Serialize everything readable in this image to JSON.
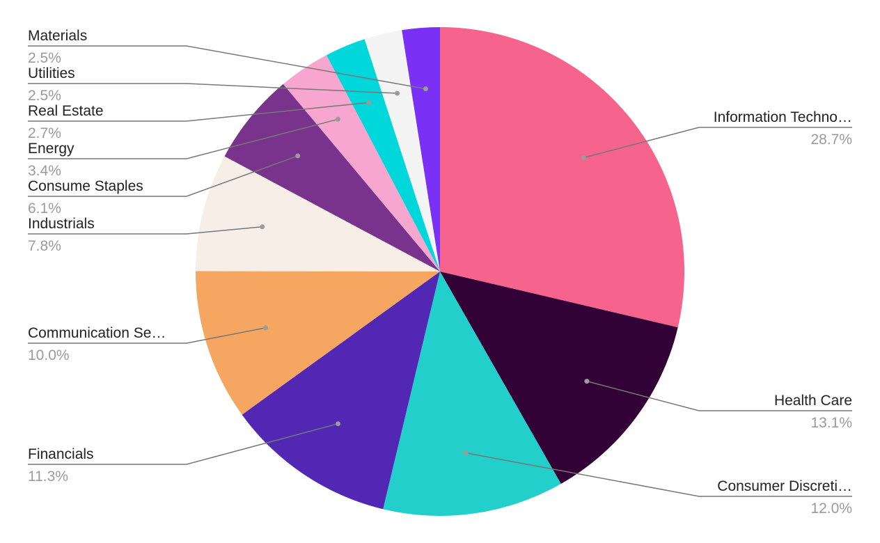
{
  "chart_data": {
    "type": "pie",
    "start_angle_deg": 0,
    "direction": "clockwise",
    "slices": [
      {
        "label": "Information Techno…",
        "value": 28.7,
        "pct_label": "28.7%",
        "color": "#F6638D",
        "side": "right"
      },
      {
        "label": "Health Care",
        "value": 13.1,
        "pct_label": "13.1%",
        "color": "#320236",
        "side": "right"
      },
      {
        "label": "Consumer Discreti…",
        "value": 12.0,
        "pct_label": "12.0%",
        "color": "#23CFCB",
        "side": "right"
      },
      {
        "label": "Financials",
        "value": 11.3,
        "pct_label": "11.3%",
        "color": "#5227B4",
        "side": "left"
      },
      {
        "label": "Communication Se…",
        "value": 10.0,
        "pct_label": "10.0%",
        "color": "#F5A660",
        "side": "left"
      },
      {
        "label": "Industrials",
        "value": 7.8,
        "pct_label": "7.8%",
        "color": "#F8EEE8",
        "side": "left"
      },
      {
        "label": "Consume Staples",
        "value": 6.1,
        "pct_label": "6.1%",
        "color": "#7A338C",
        "side": "left"
      },
      {
        "label": "Energy",
        "value": 3.4,
        "pct_label": "3.4%",
        "color": "#F6A6CF",
        "side": "left"
      },
      {
        "label": "Real Estate",
        "value": 2.7,
        "pct_label": "2.7%",
        "color": "#00D7DB",
        "side": "left"
      },
      {
        "label": "Utilities",
        "value": 2.5,
        "pct_label": "2.5%",
        "color": "#F4F4F5",
        "side": "left"
      },
      {
        "label": "Materials",
        "value": 2.5,
        "pct_label": "2.5%",
        "color": "#7A30F5",
        "side": "left"
      }
    ]
  }
}
